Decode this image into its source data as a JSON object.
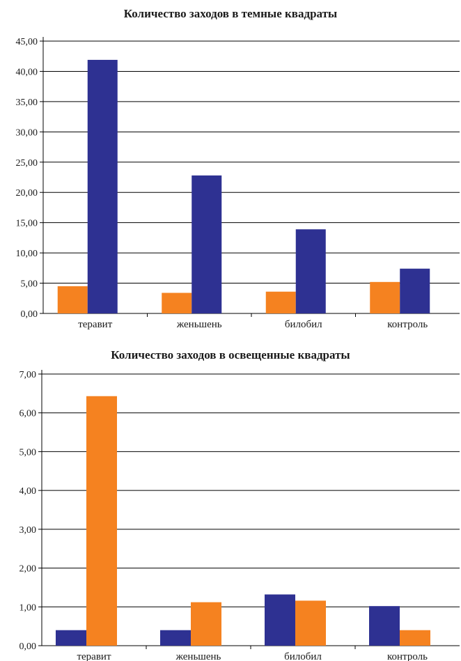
{
  "colors": {
    "orange": "#f58220",
    "blue": "#2e3192",
    "grid": "#000000"
  },
  "chart_data": [
    {
      "type": "bar",
      "title": "Количество заходов в темные квадраты",
      "categories": [
        "теравит",
        "женьшень",
        "билобил",
        "контроль"
      ],
      "series": [
        {
          "color": "orange",
          "values": [
            4.5,
            3.4,
            3.6,
            5.2
          ]
        },
        {
          "color": "blue",
          "values": [
            41.9,
            22.8,
            13.9,
            7.4
          ]
        }
      ],
      "ylim": [
        0,
        45
      ],
      "yticks": [
        "0,00",
        "5,00",
        "10,00",
        "15,00",
        "20,00",
        "25,00",
        "30,00",
        "35,00",
        "40,00",
        "45,00"
      ],
      "grid": true
    },
    {
      "type": "bar",
      "title": "Количество заходов в освещенные квадраты",
      "categories": [
        "теравит",
        "женьшень",
        "билобил",
        "контроль"
      ],
      "series": [
        {
          "color": "blue",
          "values": [
            0.4,
            0.4,
            1.32,
            1.02
          ]
        },
        {
          "color": "orange",
          "values": [
            6.43,
            1.12,
            1.16,
            0.4
          ]
        }
      ],
      "ylim": [
        0,
        7
      ],
      "yticks": [
        "0,00",
        "1,00",
        "2,00",
        "3,00",
        "4,00",
        "5,00",
        "6,00",
        "7,00"
      ],
      "grid": true
    }
  ]
}
